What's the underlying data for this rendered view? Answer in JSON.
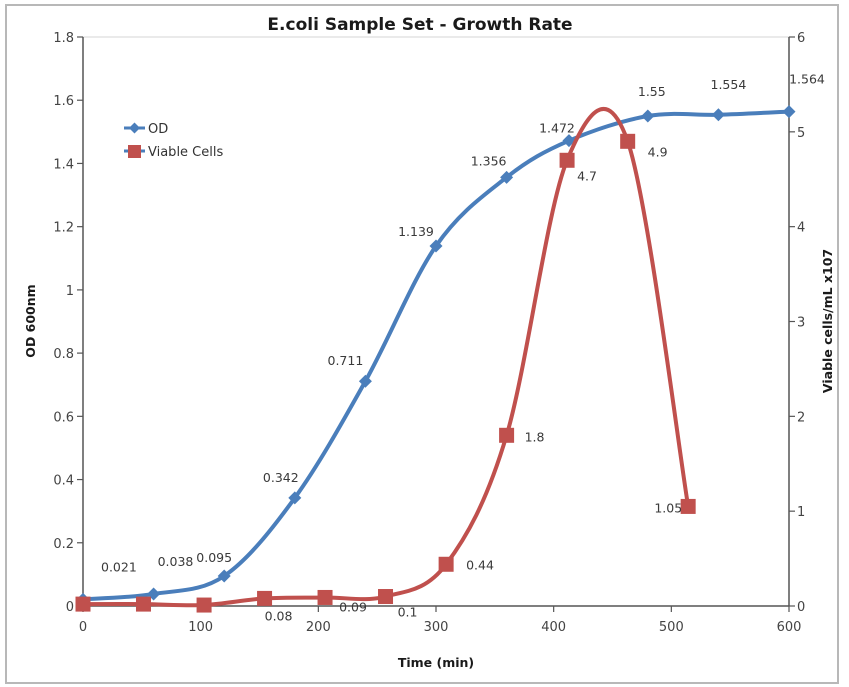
{
  "chart_data": {
    "type": "line",
    "title": "E.coli Sample Set - Growth Rate",
    "xlabel": "Time (min)",
    "ylabel": "OD 600nm",
    "y2label": "Viable cells/mL x107",
    "xlim": [
      0,
      600
    ],
    "ylim": [
      0,
      1.8
    ],
    "y2lim": [
      0,
      6
    ],
    "x_ticks": [
      "0",
      "100",
      "200",
      "300",
      "400",
      "500",
      "600"
    ],
    "x_tick_values": [
      0,
      100,
      200,
      300,
      400,
      500,
      600
    ],
    "y_ticks": [
      "0",
      "0.2",
      "0.4",
      "0.6",
      "0.8",
      "1",
      "1.2",
      "1.4",
      "1.6",
      "1.8"
    ],
    "y_tick_values": [
      0,
      0.2,
      0.4,
      0.6,
      0.8,
      1.0,
      1.2,
      1.4,
      1.6,
      1.8
    ],
    "y2_ticks": [
      "0",
      "1",
      "2",
      "3",
      "4",
      "5",
      "6"
    ],
    "y2_tick_values": [
      0,
      1,
      2,
      3,
      4,
      5,
      6
    ],
    "grid": false,
    "smooth": true,
    "legend": {
      "position": "top-left",
      "entries": [
        "OD",
        "Viable Cells"
      ]
    },
    "series": [
      {
        "name": "OD",
        "axis": "left",
        "color": "#4a7ebb",
        "marker": "diamond",
        "x": [
          0,
          60,
          120,
          180,
          240,
          300,
          360,
          413,
          480,
          540,
          600
        ],
        "values": [
          0.021,
          0.038,
          0.095,
          0.342,
          0.711,
          1.139,
          1.356,
          1.472,
          1.55,
          1.554,
          1.564
        ],
        "labels": [
          "0.021",
          "0.038",
          "0.095",
          "0.342",
          "0.711",
          "1.139",
          "1.356",
          "1.472",
          "1.55",
          "1.554",
          "1.564"
        ]
      },
      {
        "name": "Viable Cells",
        "axis": "right",
        "color": "#c0504d",
        "marker": "square",
        "x": [
          0,
          51.4,
          102.9,
          154.3,
          205.7,
          257.1,
          308.6,
          360,
          411.4,
          462.9,
          514.3
        ],
        "values": [
          0.02,
          0.02,
          0.01,
          0.08,
          0.09,
          0.1,
          0.44,
          1.8,
          4.7,
          4.9,
          1.05
        ],
        "labels": [
          "",
          "",
          "",
          "0.08",
          "0.09",
          "0.1",
          "0.44",
          "1.8",
          "4.7",
          "4.9",
          "1.05"
        ]
      }
    ]
  }
}
